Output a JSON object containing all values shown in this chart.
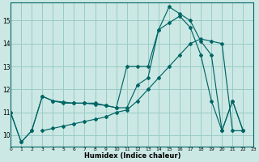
{
  "xlabel": "Humidex (Indice chaleur)",
  "background_color": "#cce8e4",
  "grid_color": "#99ccc6",
  "line_color": "#006666",
  "xlim": [
    0,
    23
  ],
  "ylim": [
    9.5,
    15.8
  ],
  "xticks": [
    0,
    1,
    2,
    3,
    4,
    5,
    6,
    7,
    8,
    9,
    10,
    11,
    12,
    13,
    14,
    15,
    16,
    17,
    18,
    19,
    20,
    21,
    22,
    23
  ],
  "yticks": [
    10,
    11,
    12,
    13,
    14,
    15
  ],
  "curve1_x": [
    0,
    1,
    2,
    3,
    4,
    5,
    6,
    7,
    8,
    9,
    10,
    11,
    12,
    13,
    14,
    15,
    16,
    17,
    18,
    19,
    20,
    21,
    22
  ],
  "curve1_y": [
    11.0,
    9.7,
    10.2,
    11.7,
    11.5,
    11.45,
    11.4,
    11.4,
    11.4,
    11.3,
    11.2,
    13.0,
    13.0,
    13.0,
    14.6,
    15.6,
    15.3,
    15.0,
    14.1,
    13.5,
    10.2,
    11.5,
    10.2
  ],
  "curve2_x": [
    3,
    4,
    5,
    6,
    7,
    8,
    9,
    10,
    11,
    12,
    13,
    14,
    15,
    16,
    17,
    18,
    19,
    20,
    21,
    22
  ],
  "curve2_y": [
    10.2,
    10.3,
    10.4,
    10.5,
    10.6,
    10.7,
    10.8,
    11.0,
    11.1,
    11.5,
    12.0,
    12.5,
    13.0,
    13.5,
    14.0,
    14.2,
    14.1,
    14.0,
    10.2,
    10.2
  ],
  "curve3_x": [
    0,
    1,
    2,
    3,
    4,
    5,
    6,
    7,
    8,
    9,
    10,
    11,
    12,
    13,
    14,
    15,
    16,
    17,
    18,
    19,
    20,
    21,
    22
  ],
  "curve3_y": [
    11.0,
    9.7,
    10.2,
    11.7,
    11.5,
    11.4,
    11.4,
    11.4,
    11.35,
    11.3,
    11.2,
    11.2,
    12.2,
    12.5,
    14.6,
    14.9,
    15.2,
    14.7,
    13.5,
    11.5,
    10.2,
    11.5,
    10.2
  ]
}
